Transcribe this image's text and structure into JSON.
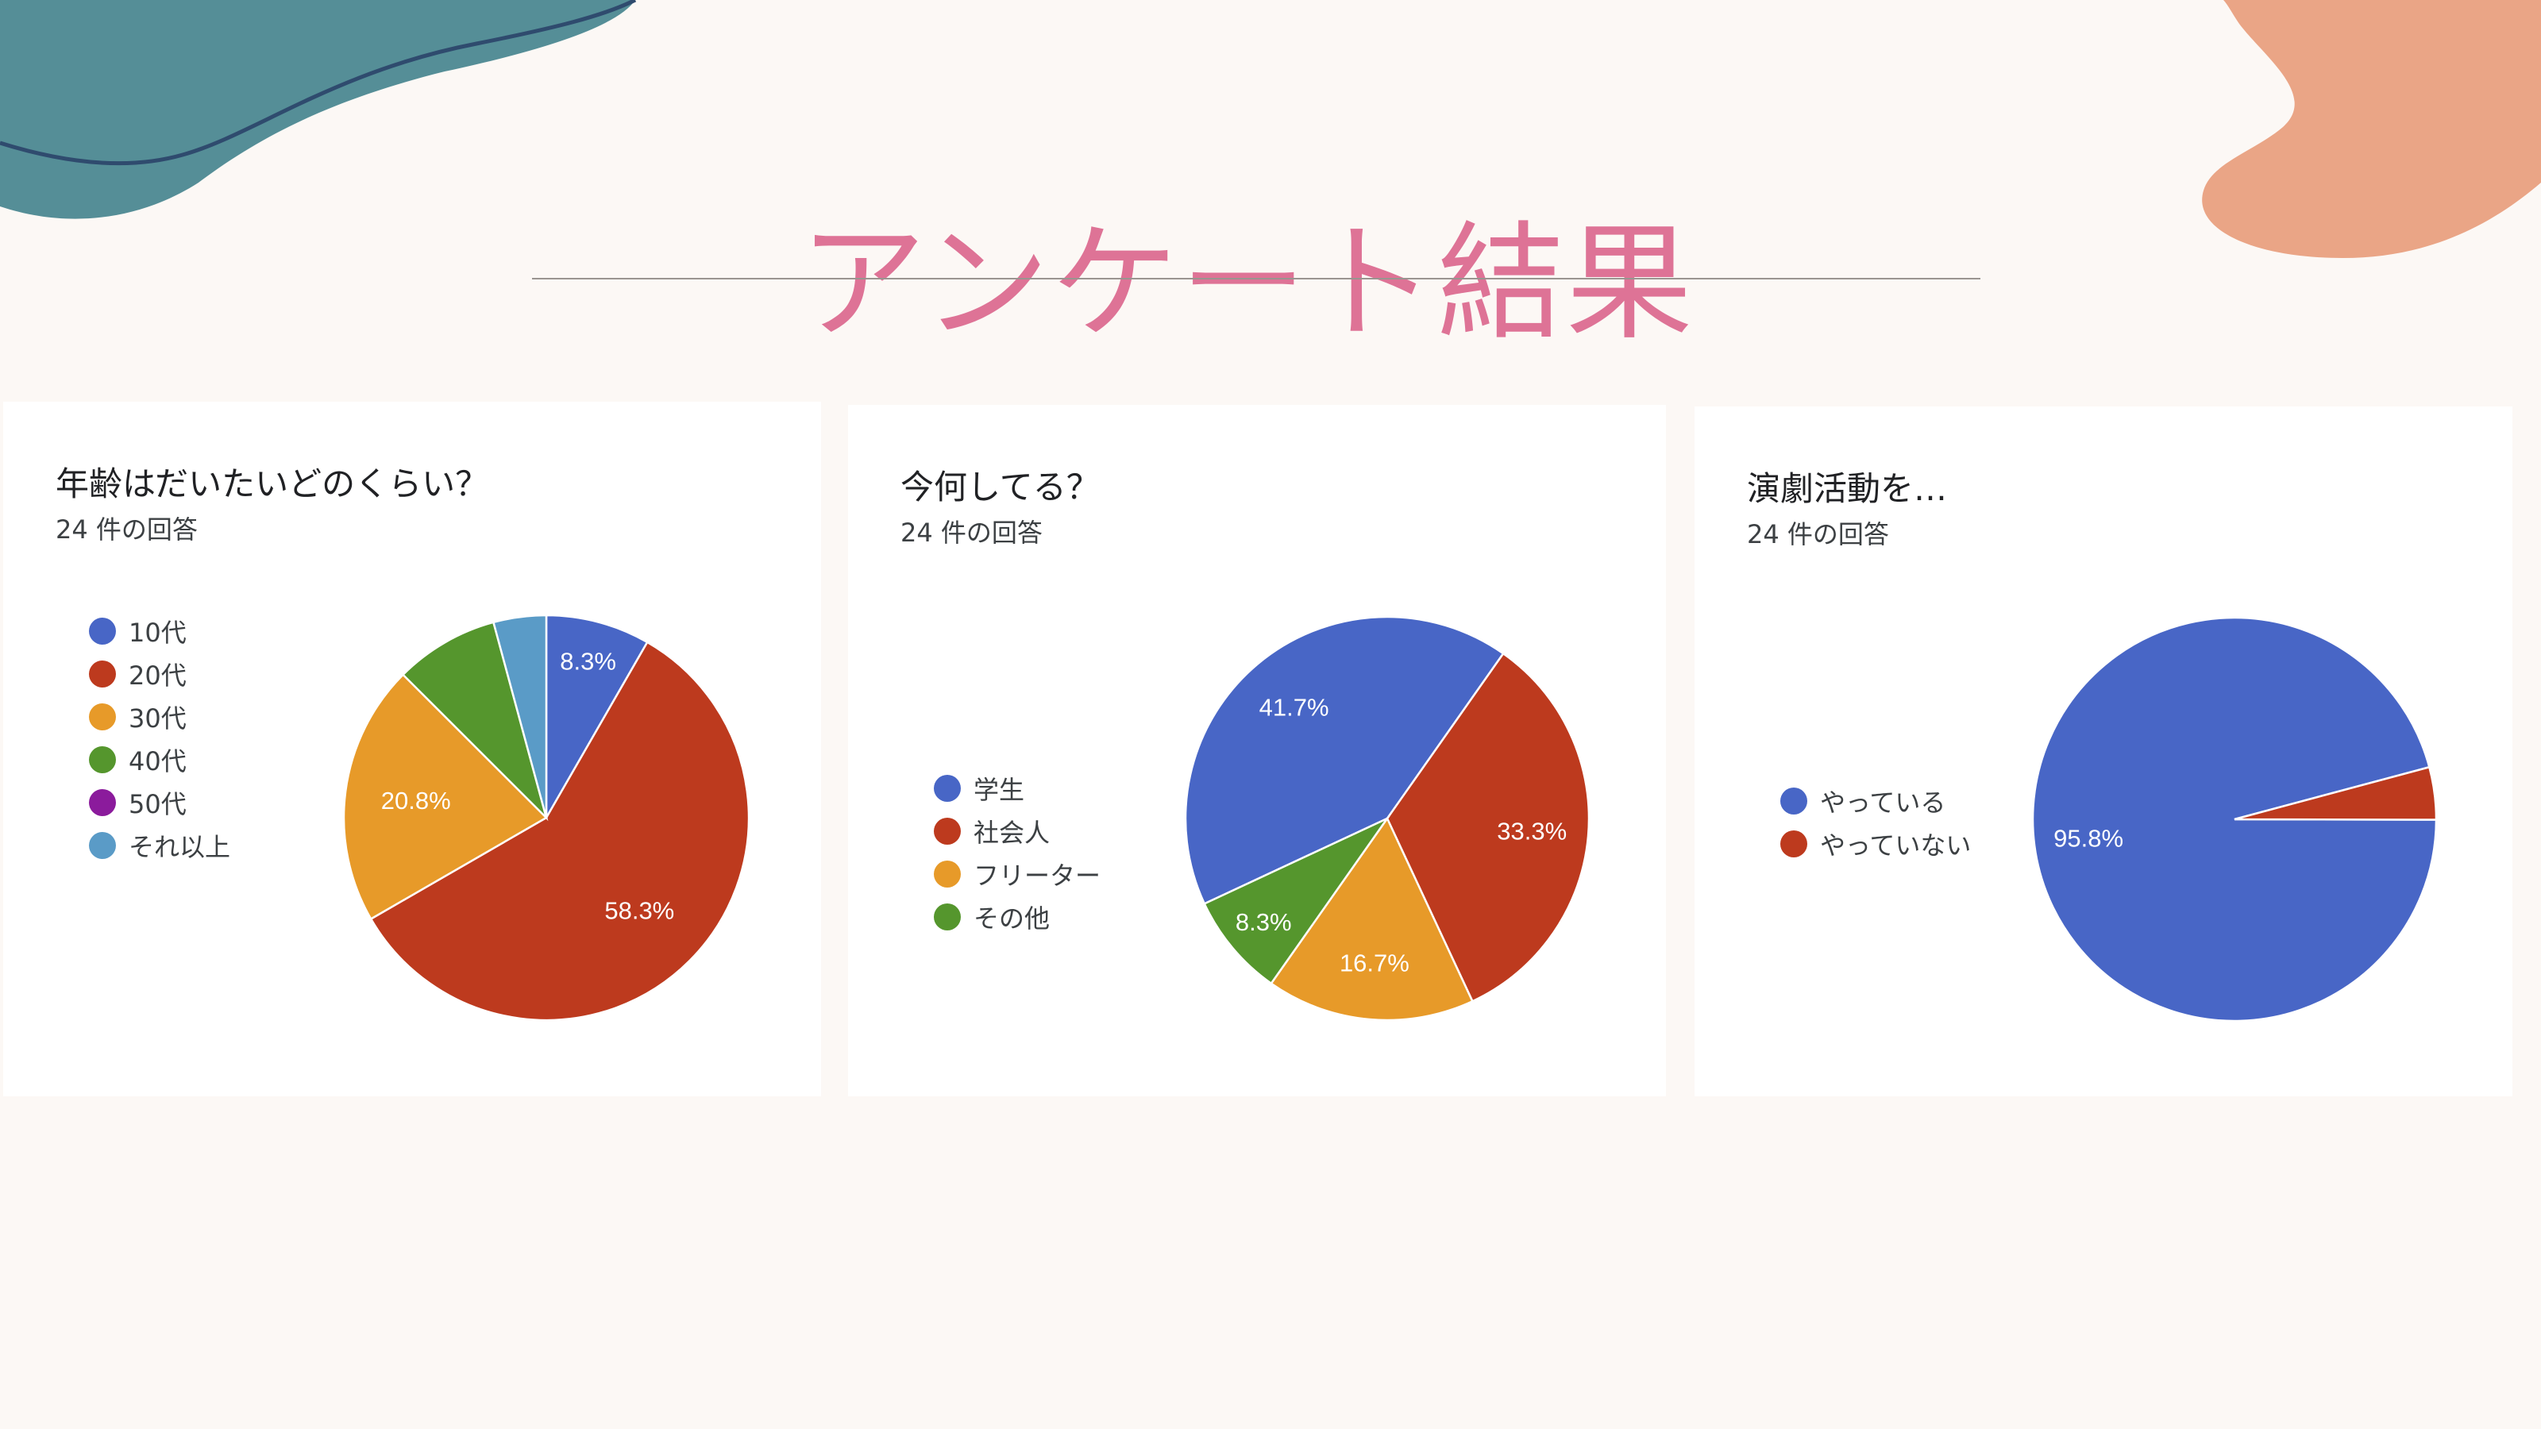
{
  "page": {
    "title": "アンケート結果",
    "decor": {
      "left_blob_color": "#558e97",
      "left_blob_line": "#2f4b6e",
      "right_blob_color": "#eaa586"
    }
  },
  "chart_data": [
    {
      "type": "pie",
      "title": "年齢はだいたいどのくらい？",
      "subtitle": "24 件の回答",
      "legend_position": "left",
      "series": [
        {
          "categories": [
            "10代",
            "20代",
            "30代",
            "40代",
            "50代",
            "それ以上"
          ],
          "values": [
            8.3,
            58.3,
            20.8,
            8.3,
            0,
            4.2
          ],
          "value_labels": [
            "8.3%",
            "58.3%",
            "20.8%",
            "",
            "",
            ""
          ],
          "colors": [
            "#4866c6",
            "#bd3a1e",
            "#e79a29",
            "#55962d",
            "#8b1b9c",
            "#5a9bc7"
          ]
        }
      ]
    },
    {
      "type": "pie",
      "title": "今何してる？",
      "subtitle": "24 件の回答",
      "legend_position": "left",
      "series": [
        {
          "categories": [
            "学生",
            "社会人",
            "フリーター",
            "その他"
          ],
          "values": [
            41.7,
            33.3,
            16.7,
            8.3
          ],
          "value_labels": [
            "41.7%",
            "33.3%",
            "16.7%",
            "8.3%"
          ],
          "colors": [
            "#4866c6",
            "#bd3a1e",
            "#e79a29",
            "#55962d"
          ]
        }
      ]
    },
    {
      "type": "pie",
      "title": "演劇活動を…",
      "subtitle": "24 件の回答",
      "legend_position": "left",
      "series": [
        {
          "categories": [
            "やっている",
            "やっていない"
          ],
          "values": [
            95.8,
            4.2
          ],
          "value_labels": [
            "95.8%",
            ""
          ],
          "colors": [
            "#4866c6",
            "#bd3a1e"
          ]
        }
      ]
    }
  ]
}
